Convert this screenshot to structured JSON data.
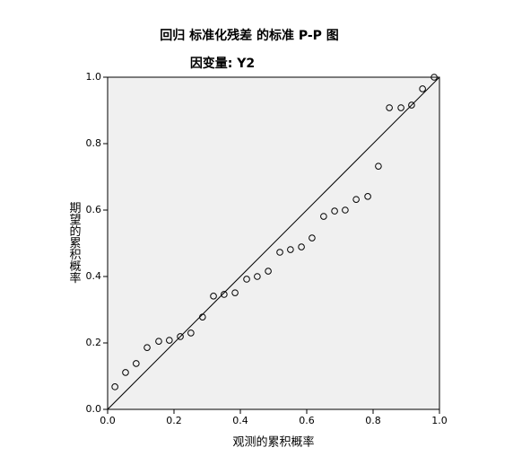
{
  "chart_data": {
    "type": "scatter",
    "title": "回归 标准化残差 的标准 P-P 图",
    "subtitle": "因变量: Y2",
    "x_label": "观测的累积概率",
    "y_label": "期望的累积概率",
    "x": [
      0.022,
      0.054,
      0.086,
      0.119,
      0.154,
      0.186,
      0.219,
      0.251,
      0.286,
      0.319,
      0.351,
      0.384,
      0.419,
      0.451,
      0.484,
      0.519,
      0.551,
      0.584,
      0.616,
      0.651,
      0.684,
      0.716,
      0.749,
      0.784,
      0.816,
      0.849,
      0.884,
      0.916,
      0.949,
      0.984
    ],
    "values": [
      0.068,
      0.111,
      0.138,
      0.186,
      0.205,
      0.208,
      0.219,
      0.23,
      0.278,
      0.341,
      0.346,
      0.351,
      0.392,
      0.4,
      0.416,
      0.473,
      0.481,
      0.489,
      0.516,
      0.581,
      0.597,
      0.6,
      0.632,
      0.641,
      0.732,
      0.908,
      0.908,
      0.916,
      0.965,
      1.0
    ],
    "color": "#000000",
    "xlim": [
      0,
      1
    ],
    "ylim": [
      0,
      1
    ],
    "xticks": [
      {
        "value": 0,
        "label": "0.0"
      },
      0.2,
      0.4,
      0.6,
      0.8,
      {
        "value": 1,
        "label": "1.0"
      }
    ],
    "yticks": [
      {
        "value": 0,
        "label": "0.0"
      },
      0.2,
      0.4,
      0.6,
      0.8,
      {
        "value": 1,
        "label": "1.0"
      }
    ]
  }
}
